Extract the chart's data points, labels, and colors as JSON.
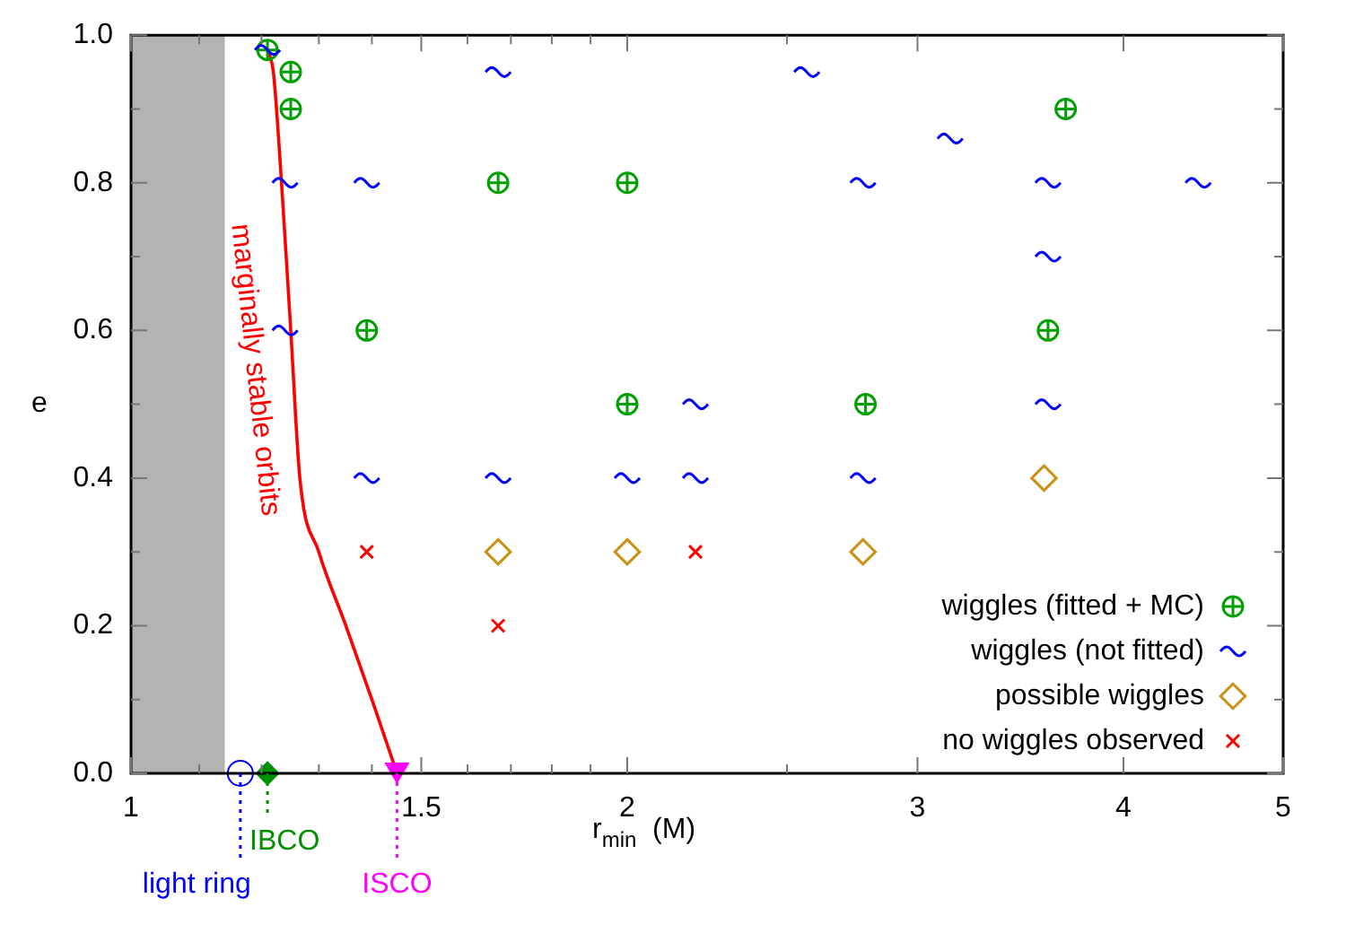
{
  "chart_data": {
    "type": "scatter",
    "xlabel": "r$_{min}$  (M)",
    "ylabel": "e",
    "log": "x",
    "xlim": [
      1,
      5
    ],
    "ylim": [
      0,
      1
    ],
    "xticks": [
      1,
      {
        "value": 1.1,
        "label": null
      },
      {
        "value": 1.2,
        "label": null
      },
      {
        "value": 1.3,
        "label": null
      },
      {
        "value": 1.4,
        "label": null
      },
      1.5,
      {
        "value": 1.6,
        "label": null
      },
      {
        "value": 1.7,
        "label": null
      },
      {
        "value": 1.8,
        "label": null
      },
      {
        "value": 1.9,
        "label": null
      },
      2,
      {
        "value": 2.5,
        "label": null
      },
      3,
      4,
      5
    ],
    "yticks": [
      {
        "value": 0,
        "label": "0.0"
      },
      {
        "value": 0.1,
        "label": null
      },
      0.2,
      {
        "value": 0.3,
        "label": null
      },
      0.4,
      {
        "value": 0.5,
        "label": null
      },
      0.6,
      {
        "value": 0.7,
        "label": null
      },
      0.8,
      {
        "value": 0.9,
        "label": null
      },
      {
        "value": 1,
        "label": "1.0"
      }
    ],
    "grid": false,
    "legend": "bottom right",
    "series": [
      {
        "name": "wiggles (fitted + MC)",
        "color": "#00a000",
        "marker": "circle",
        "x": [
          1.21,
          1.25,
          1.25,
          1.67,
          2.0,
          1.39,
          2.0,
          2.79,
          3.6,
          3.69
        ],
        "values": [
          0.98,
          0.95,
          0.9,
          0.8,
          0.8,
          0.6,
          0.5,
          0.5,
          0.6,
          0.9
        ]
      },
      {
        "name": "wiggles (not fitted)",
        "color": "#0000ff",
        "x": [
          1.21,
          1.67,
          2.57,
          3.14,
          1.24,
          1.39,
          2.78,
          3.6,
          4.44,
          3.6,
          1.24,
          2.2,
          3.6,
          1.39,
          1.67,
          2.0,
          2.2,
          2.78
        ],
        "values": [
          0.98,
          0.95,
          0.95,
          0.86,
          0.8,
          0.8,
          0.8,
          0.8,
          0.8,
          0.7,
          0.6,
          0.5,
          0.5,
          0.4,
          0.4,
          0.4,
          0.4,
          0.4
        ]
      },
      {
        "name": "possible wiggles",
        "color": "#cc9014",
        "marker": "diamond",
        "x": [
          1.67,
          2.0,
          2.78,
          3.58
        ],
        "values": [
          0.3,
          0.3,
          0.3,
          0.4
        ]
      },
      {
        "name": "no wiggles observed",
        "color": "#ff0000",
        "marker": "cross",
        "x": [
          1.39,
          2.2,
          1.67
        ],
        "values": [
          0.3,
          0.3,
          0.2
        ]
      },
      {
        "name": "marginally stable orbits",
        "type": "line",
        "color": "#ff0000",
        "marker": "none",
        "x": [
          1.21,
          1.22,
          1.234,
          1.25,
          1.266,
          1.3,
          1.35,
          1.4,
          1.45
        ],
        "values": [
          0.98,
          0.95,
          0.8,
          0.6,
          0.4,
          0.3,
          0.2,
          0.1,
          0
        ]
      },
      {
        "color": "#0000ff",
        "marker": "circle",
        "x": [
          1.165
        ],
        "values": [
          0
        ]
      },
      {
        "color": "#009000",
        "marker": "diamond",
        "x": [
          1.21
        ],
        "values": [
          0
        ]
      },
      {
        "color": "#ff00ff",
        "marker": "triangle",
        "x": [
          1.45
        ],
        "values": [
          0
        ]
      }
    ],
    "bands": [
      {
        "axis": "x",
        "from": 1,
        "to": 1.14,
        "color": "#b3b3b3"
      }
    ],
    "ref_lines": [
      {
        "axis": "x",
        "value": 1.165,
        "label": "light ring",
        "color": "#0000ff",
        "line_style": "dotted"
      },
      {
        "axis": "x",
        "value": 1.21,
        "label": "IBCO",
        "color": "#009000",
        "line_style": "dotted"
      },
      {
        "axis": "x",
        "value": 1.45,
        "label": "ISCO",
        "color": "#ff00ff",
        "line_style": "dotted"
      }
    ]
  }
}
